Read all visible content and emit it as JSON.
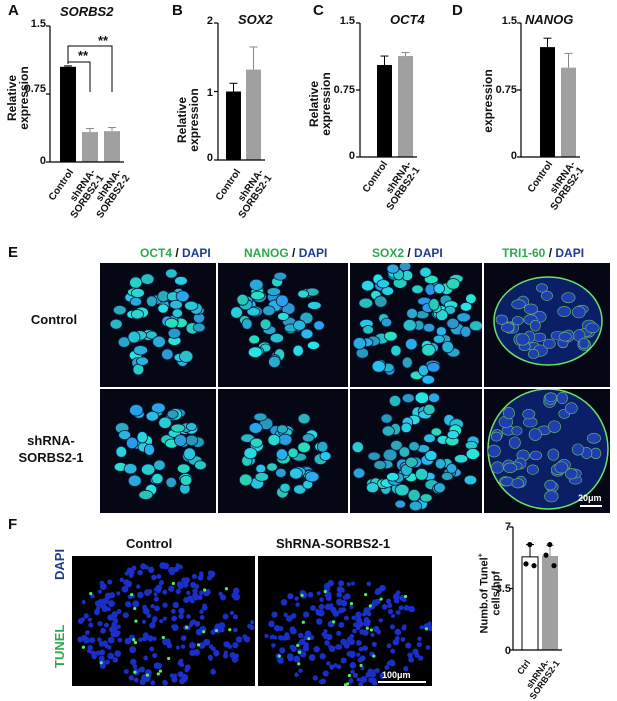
{
  "panels": {
    "A": {
      "letter": "A",
      "gene": "SORBS2"
    },
    "B": {
      "letter": "B",
      "gene": "SOX2"
    },
    "C": {
      "letter": "C",
      "gene": "OCT4"
    },
    "D": {
      "letter": "D",
      "gene": "NANOG"
    },
    "E": {
      "letter": "E"
    },
    "F": {
      "letter": "F"
    }
  },
  "ylabels": {
    "relative_expression_l1": "Relative",
    "relative_expression_l2": "expression",
    "expression": "expression"
  },
  "significance": [
    "**",
    "**"
  ],
  "chart_data": [
    {
      "type": "bar",
      "panel": "A",
      "title": "SORBS2",
      "categories": [
        "Control",
        "shRNA-SORBS2-1",
        "shRNA-SORBS2-2"
      ],
      "values": [
        1.05,
        0.33,
        0.34
      ],
      "errors": [
        0.01,
        0.04,
        0.04
      ],
      "ylabel": "Relative expression",
      "ylim": [
        0,
        1.5
      ],
      "yticks": [
        "0",
        "0.75",
        "1.5"
      ],
      "colors": [
        "#000000",
        "#a0a0a0",
        "#a0a0a0"
      ]
    },
    {
      "type": "bar",
      "panel": "B",
      "title": "SOX2",
      "categories": [
        "Control",
        "shRNA-SORBS2-1"
      ],
      "values": [
        1.0,
        1.32
      ],
      "errors": [
        0.12,
        0.33
      ],
      "ylabel": "Relative expression",
      "ylim": [
        0,
        2
      ],
      "yticks": [
        "0",
        "1",
        "2"
      ],
      "colors": [
        "#000000",
        "#a0a0a0"
      ]
    },
    {
      "type": "bar",
      "panel": "C",
      "title": "OCT4",
      "categories": [
        "Control",
        "shRNA-SORBS2-1"
      ],
      "values": [
        1.03,
        1.13
      ],
      "errors": [
        0.1,
        0.04
      ],
      "ylabel": "Relative expression",
      "ylim": [
        0,
        1.5
      ],
      "yticks": [
        "0",
        "0.75",
        "1.5"
      ],
      "colors": [
        "#000000",
        "#a0a0a0"
      ]
    },
    {
      "type": "bar",
      "panel": "D",
      "title": "NANOG",
      "categories": [
        "Control",
        "shRNA-SORBS2-1"
      ],
      "values": [
        1.23,
        1.0
      ],
      "errors": [
        0.1,
        0.16
      ],
      "ylabel": "expression",
      "ylim": [
        0,
        1.5
      ],
      "yticks": [
        "0",
        "0.75",
        "1.5"
      ],
      "colors": [
        "#000000",
        "#a0a0a0"
      ]
    },
    {
      "type": "bar",
      "panel": "F",
      "title": "",
      "categories": [
        "Ctrl",
        "shRNA-SORBS2-1"
      ],
      "values": [
        5.3,
        5.35
      ],
      "errors": [
        0.7,
        0.6
      ],
      "points": [
        [
          6.0,
          4.9,
          4.8
        ],
        [
          6.0,
          5.4,
          4.8
        ]
      ],
      "ylabel": "Numb.of Tunel+ cells/hpf",
      "ylim": [
        0,
        7
      ],
      "yticks": [
        "0",
        "3.5",
        "7"
      ],
      "colors": [
        "#ffffff",
        "#a0a0a0"
      ]
    }
  ],
  "cat_labels": {
    "control": "Control",
    "sh1_l1": "shRNA-",
    "sh1_l2": "SORBS2-1",
    "sh2_l1": "shRNA-",
    "sh2_l2": "SORBS2-2",
    "ctrl": "Ctrl"
  },
  "panelE": {
    "columns": [
      {
        "marker": "OCT4",
        "sep": " / ",
        "dapi": "DAPI"
      },
      {
        "marker": "NANOG",
        "sep": " / ",
        "dapi": "DAPI"
      },
      {
        "marker": "SOX2",
        "sep": " / ",
        "dapi": "DAPI"
      },
      {
        "marker": "TRI1-60",
        "sep": "  / ",
        "dapi": "DAPI"
      }
    ],
    "rows": [
      {
        "label_l1": "Control",
        "label_l2": ""
      },
      {
        "label_l1": "shRNA-",
        "label_l2": "SORBS2-1"
      }
    ],
    "scale": "20μm"
  },
  "panelF": {
    "columns": [
      "Control",
      "ShRNA-SORBS2-1"
    ],
    "side_dapi": "DAPI",
    "side_tunel": "TUNEL",
    "scale": "100μm",
    "ylabel_l1": "Numb.of Tunel",
    "ylabel_sup": "+",
    "ylabel_l2": "cells/hpf"
  }
}
